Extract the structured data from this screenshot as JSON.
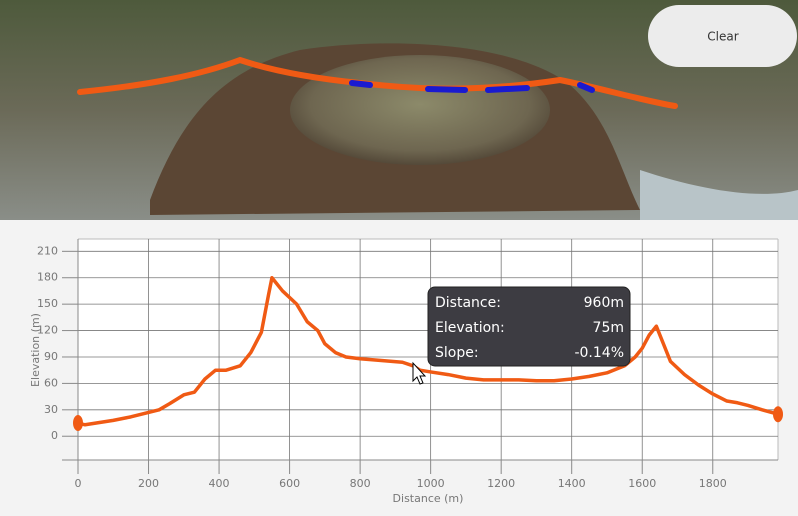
{
  "button": {
    "label": "Clear"
  },
  "chart_data": {
    "type": "line",
    "x_label": "Distance (m)",
    "y_label": "Elevation (m)",
    "x": [
      0,
      20,
      100,
      150,
      200,
      230,
      260,
      300,
      330,
      360,
      390,
      420,
      460,
      490,
      520,
      540,
      550,
      580,
      620,
      650,
      680,
      700,
      730,
      760,
      800,
      860,
      920,
      950,
      970,
      1000,
      1050,
      1100,
      1150,
      1200,
      1250,
      1300,
      1350,
      1400,
      1450,
      1500,
      1550,
      1580,
      1600,
      1620,
      1640,
      1660,
      1680,
      1720,
      1760,
      1800,
      1840,
      1870,
      1900,
      1940,
      1985
    ],
    "values": [
      15,
      13,
      18,
      22,
      27,
      30,
      37,
      47,
      50,
      65,
      75,
      75,
      80,
      95,
      118,
      160,
      180,
      165,
      150,
      130,
      120,
      105,
      95,
      90,
      88,
      86,
      84,
      80,
      75,
      73,
      70,
      66,
      64,
      64,
      64,
      63,
      63,
      65,
      68,
      72,
      80,
      90,
      100,
      115,
      125,
      105,
      85,
      70,
      58,
      48,
      40,
      38,
      35,
      30,
      25
    ],
    "color": "#f05a14",
    "xlim": [
      0,
      1985
    ],
    "ylim": [
      -27,
      224
    ],
    "xticks": [
      0,
      200,
      400,
      600,
      800,
      1000,
      1200,
      1400,
      1600,
      1800
    ],
    "yticks": [
      0,
      30,
      60,
      90,
      120,
      150,
      180,
      210
    ],
    "grid": true,
    "tooltip": {
      "rows": [
        {
          "label": "Distance:",
          "value": "960m"
        },
        {
          "label": "Elevation:",
          "value": "75m"
        },
        {
          "label": "Slope:",
          "value": "-0.14%"
        }
      ]
    }
  }
}
